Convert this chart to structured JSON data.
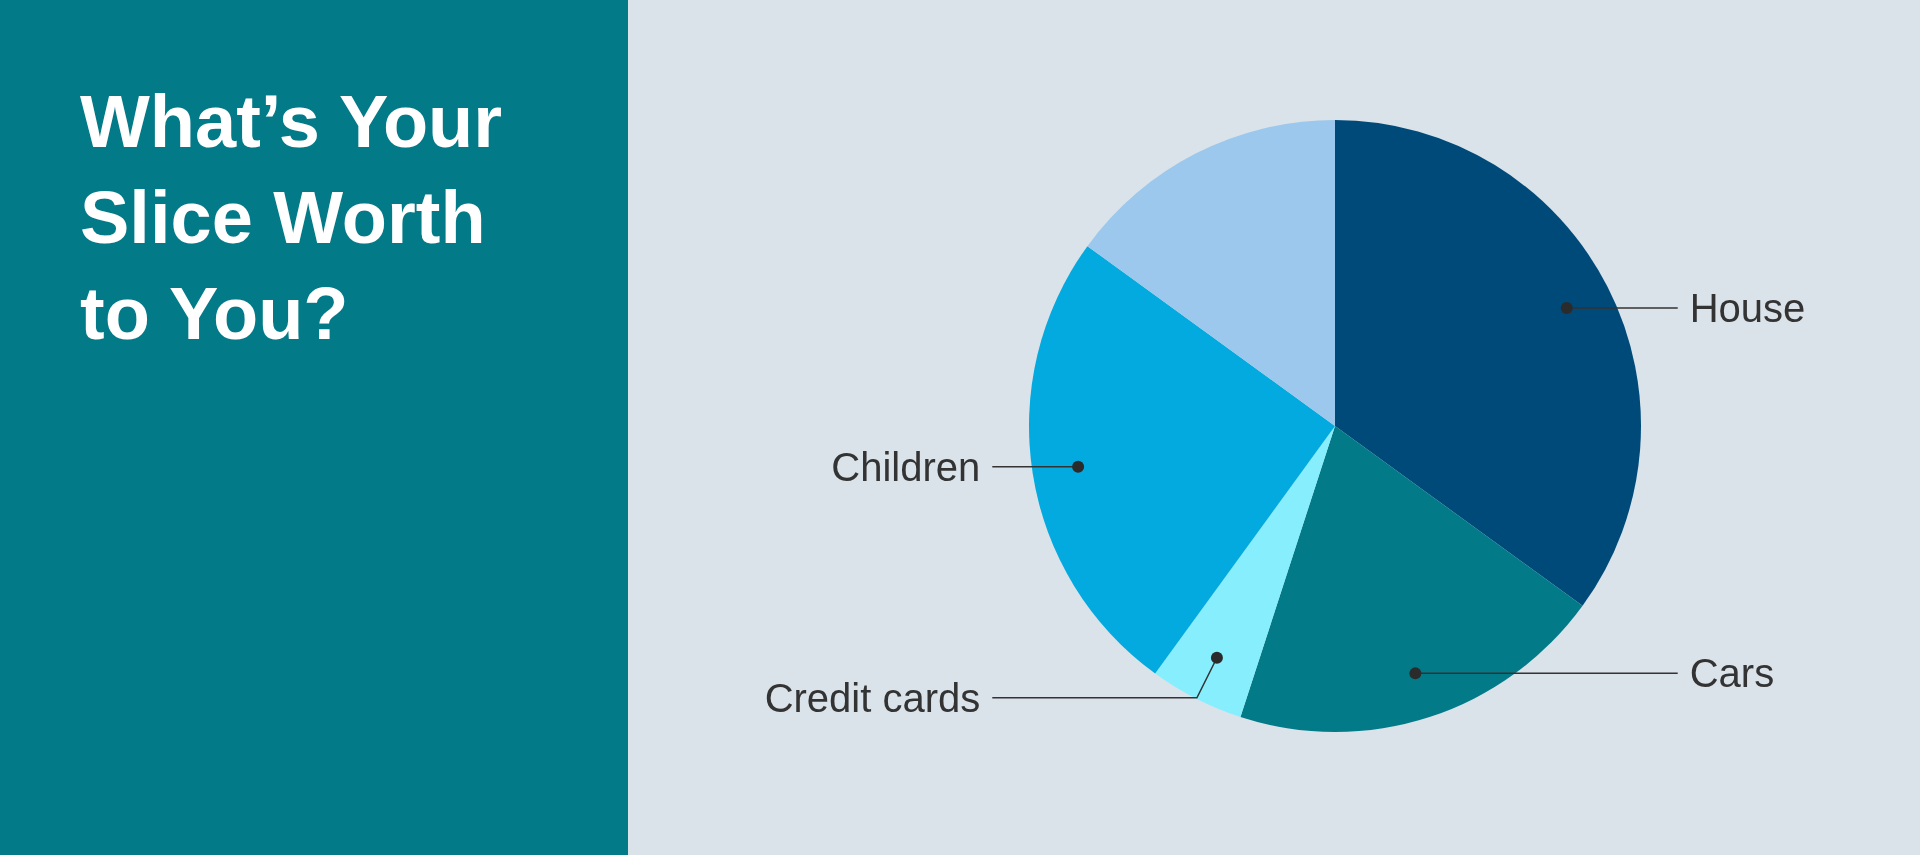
{
  "chart_data": {
    "type": "pie",
    "title": "What’s Your Slice Worth to You?",
    "categories": [
      "House",
      "Cars",
      "Credit cards",
      "Children",
      null
    ],
    "values": [
      35,
      20,
      5,
      25,
      15
    ],
    "colors": [
      "#004a7a",
      "#037a87",
      "#86eefd",
      "#02aadf",
      "#9bc8ec"
    ]
  }
}
